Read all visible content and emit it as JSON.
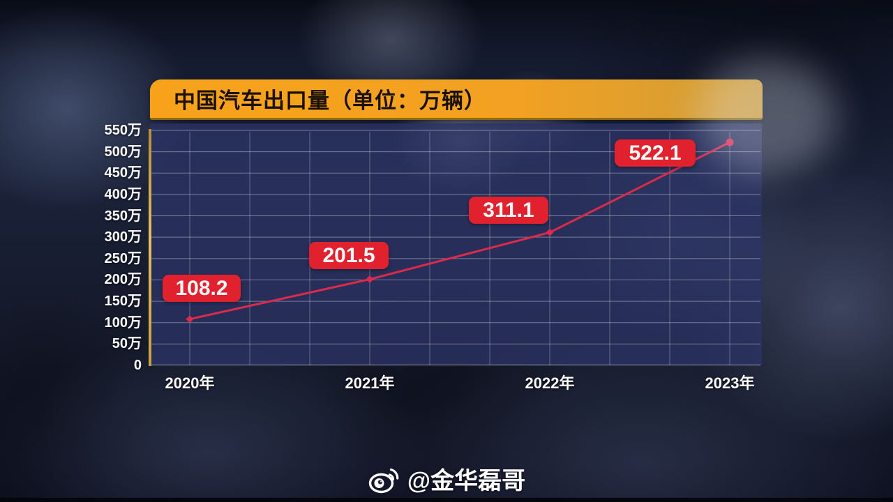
{
  "header": {
    "title": "中国汽车出口量（单位：万辆）"
  },
  "chart_data": {
    "type": "line",
    "title": "中国汽车出口量（单位：万辆）",
    "unit": "万辆",
    "categories": [
      "2020年",
      "2021年",
      "2022年",
      "2023年"
    ],
    "values": [
      108.2,
      201.5,
      311.1,
      522.1
    ],
    "series": [
      {
        "name": "中国汽车出口量",
        "values": [
          108.2,
          201.5,
          311.1,
          522.1
        ]
      }
    ],
    "ylim": [
      0,
      550
    ],
    "y_tick_step": 50,
    "y_tick_labels": [
      "0",
      "50万",
      "100万",
      "150万",
      "200万",
      "250万",
      "300万",
      "350万",
      "400万",
      "450万",
      "500万",
      "550万"
    ],
    "grid": true,
    "legend_position": "none",
    "line_color": "#dc2a4c",
    "label_box_color": "#e2212f",
    "axis_color": "#d9b04a",
    "banner_color": "#f7a21a"
  },
  "watermark": {
    "icon": "weibo-icon",
    "text": "@金华磊哥"
  }
}
